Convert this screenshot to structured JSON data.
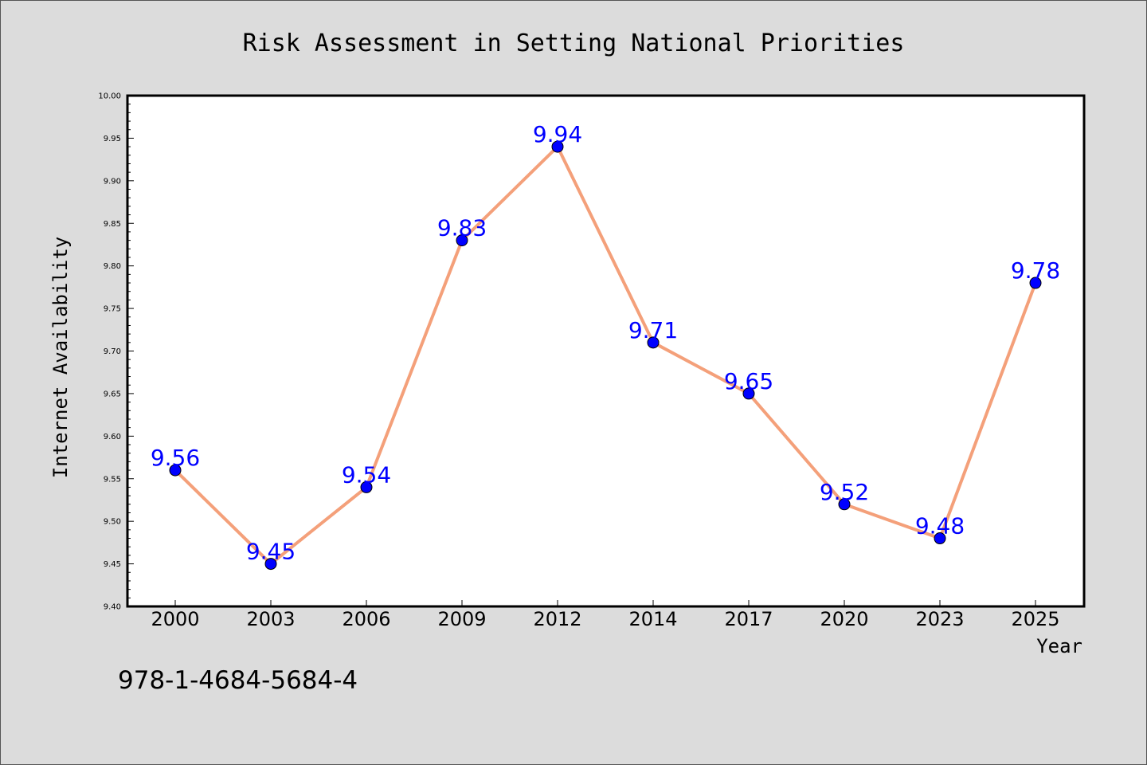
{
  "chart_data": {
    "type": "line",
    "title": "Risk Assessment in Setting National Priorities",
    "xlabel": "Year",
    "ylabel": "Internet Availability",
    "categories": [
      "2000",
      "2003",
      "2006",
      "2009",
      "2012",
      "2014",
      "2017",
      "2020",
      "2023",
      "2025"
    ],
    "series": [
      {
        "values": [
          9.56,
          9.45,
          9.54,
          9.83,
          9.94,
          9.71,
          9.65,
          9.52,
          9.48,
          9.78
        ]
      }
    ],
    "data_labels": [
      "9.56",
      "9.45",
      "9.54",
      "9.83",
      "9.94",
      "9.71",
      "9.65",
      "9.52",
      "9.48",
      "9.78"
    ],
    "ylim": [
      9.4,
      10.0
    ],
    "yticks": [
      "9.40",
      "9.45",
      "9.50",
      "9.55",
      "9.60",
      "9.65",
      "9.70",
      "9.75",
      "9.80",
      "9.85",
      "9.90",
      "9.95",
      "10.00"
    ],
    "grid": false,
    "legend": "none",
    "colors": {
      "line": "#f4a07a",
      "marker": "#0000ff",
      "data_label": "#0000ff",
      "plot_background": "#ffffff",
      "figure_background": "#dcdcdc"
    }
  },
  "footer": {
    "code": "978-1-4684-5684-4"
  }
}
